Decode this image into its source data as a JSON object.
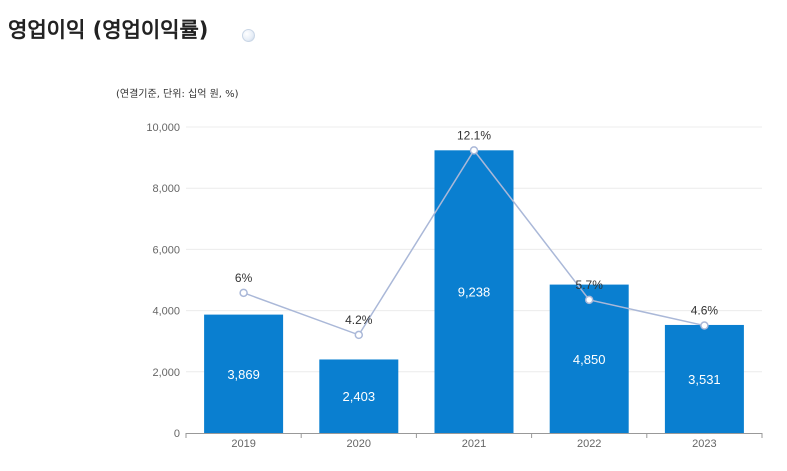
{
  "title": "영업이익 (영업이익률)",
  "unit_note": "(연결기준, 단위: 십억 원, %)",
  "chart_data": {
    "type": "bar",
    "title": "영업이익 (영업이익률)",
    "categories": [
      "2019",
      "2020",
      "2021",
      "2022",
      "2023"
    ],
    "series": [
      {
        "name": "영업이익",
        "type": "bar",
        "values": [
          3869,
          2403,
          9238,
          4850,
          3531
        ],
        "labels": [
          "3,869",
          "2,403",
          "9,238",
          "4,850",
          "3,531"
        ]
      },
      {
        "name": "영업이익률",
        "type": "line",
        "values": [
          6,
          4.2,
          12.1,
          5.7,
          4.6
        ],
        "labels": [
          "6%",
          "4.2%",
          "12.1%",
          "5.7%",
          "4.6%"
        ]
      }
    ],
    "y_axis": {
      "ylim": [
        0,
        10000
      ],
      "ticks": [
        "0",
        "2,000",
        "4,000",
        "6,000",
        "8,000",
        "10,000"
      ]
    },
    "secondary_axis": {
      "ylim": [
        0,
        13.1
      ],
      "visible": false
    },
    "colors": {
      "bar": "#0a7fd0",
      "line": "#aab8d8",
      "grid": "#ececec"
    },
    "grid": true
  }
}
